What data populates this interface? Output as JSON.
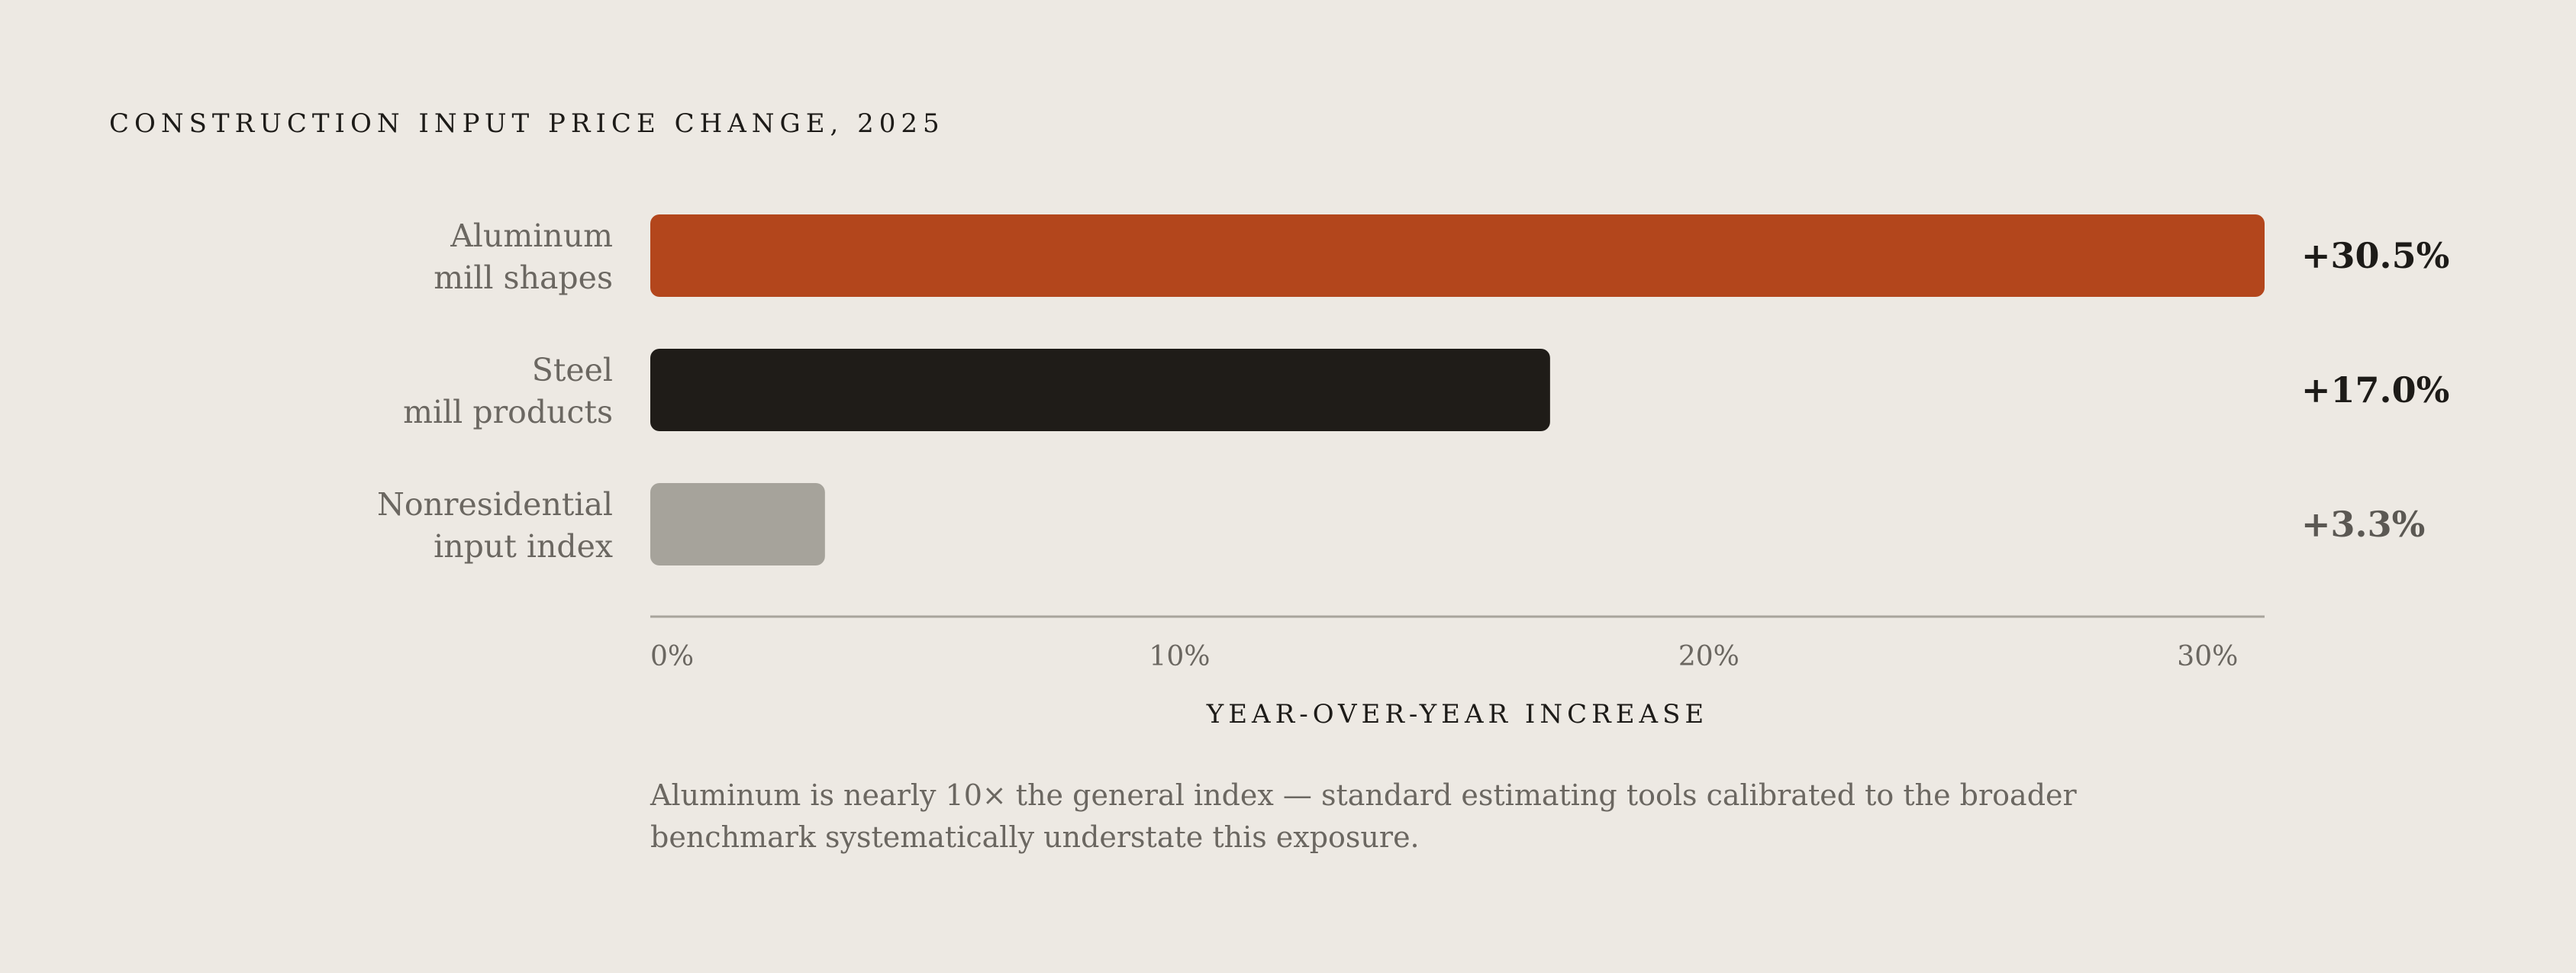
{
  "chart_data": {
    "type": "bar",
    "orientation": "horizontal",
    "title": "CONSTRUCTION INPUT PRICE CHANGE, 2025",
    "xlabel": "YEAR-OVER-YEAR INCREASE",
    "xlim": [
      0,
      30.5
    ],
    "x_ticks": [
      {
        "value": 0,
        "label": "0%"
      },
      {
        "value": 10,
        "label": "10%"
      },
      {
        "value": 20,
        "label": "20%"
      },
      {
        "value": 30,
        "label": "30%"
      }
    ],
    "bars": [
      {
        "label_lines": [
          "Aluminum",
          "mill shapes"
        ],
        "value": 30.5,
        "value_label": "+30.5%",
        "color": "#b3461c",
        "value_color": "#1d1b18"
      },
      {
        "label_lines": [
          "Steel",
          "mill products"
        ],
        "value": 17.0,
        "value_label": "+17.0%",
        "color": "#1f1c18",
        "value_color": "#1d1b18"
      },
      {
        "label_lines": [
          "Nonresidential",
          "input index"
        ],
        "value": 3.3,
        "value_label": "+3.3%",
        "color": "#a6a39b",
        "value_color": "#5b5853"
      }
    ],
    "grid": false,
    "legend": "none"
  },
  "footnote": "Aluminum is nearly 10× the general index — standard estimating tools calibrated to the broader benchmark systematically understate this exposure.",
  "colors": {
    "background": "#ede9e3",
    "axis": "#a8a49c",
    "category_text": "#6b6761",
    "tick_text": "#6b6761"
  }
}
